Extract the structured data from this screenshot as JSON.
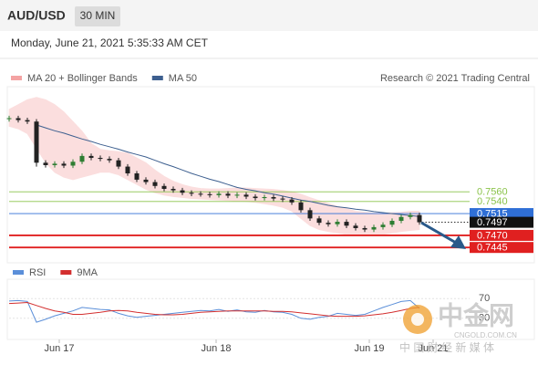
{
  "header": {
    "symbol": "AUD/USD",
    "timeframe": "30 MIN",
    "datetime": "Monday, June 21, 2021 5:35:33 AM CET"
  },
  "watermark": {
    "brand": "中金网",
    "site": "CNGOLD.COM.CN",
    "slogan": "中 国 财 经 新 媒 体"
  },
  "chart_data": [
    {
      "type": "candlestick",
      "credit": "Research © 2021 Trading Central",
      "xlim": [
        0,
        50
      ],
      "ylim": [
        0.7419,
        0.7777
      ],
      "up_color": "#2e7d32",
      "down_color": "#222222",
      "open": [
        0.771,
        0.7712,
        0.7708,
        0.7705,
        0.762,
        0.7615,
        0.7618,
        0.7614,
        0.7622,
        0.7634,
        0.763,
        0.7628,
        0.7625,
        0.7612,
        0.7598,
        0.7585,
        0.758,
        0.7572,
        0.7566,
        0.7563,
        0.7558,
        0.7556,
        0.7555,
        0.7553,
        0.7556,
        0.7552,
        0.7554,
        0.755,
        0.7547,
        0.7549,
        0.7546,
        0.7544,
        0.7538,
        0.7522,
        0.7505,
        0.7496,
        0.7493,
        0.7498,
        0.749,
        0.7485,
        0.7482,
        0.7487,
        0.7492,
        0.75,
        0.7508,
        0.7512
      ],
      "high": [
        0.7717,
        0.7717,
        0.7713,
        0.771,
        0.7625,
        0.7623,
        0.7623,
        0.7627,
        0.7639,
        0.7639,
        0.7635,
        0.7633,
        0.763,
        0.7617,
        0.7603,
        0.759,
        0.7585,
        0.7577,
        0.7571,
        0.7568,
        0.7563,
        0.7561,
        0.756,
        0.7561,
        0.7561,
        0.7559,
        0.7559,
        0.7555,
        0.7554,
        0.7554,
        0.7551,
        0.7549,
        0.7543,
        0.7527,
        0.751,
        0.7501,
        0.7503,
        0.7503,
        0.7495,
        0.749,
        0.7492,
        0.7497,
        0.7505,
        0.7513,
        0.7517,
        0.7517
      ],
      "low": [
        0.7705,
        0.7703,
        0.77,
        0.7612,
        0.761,
        0.761,
        0.7609,
        0.7609,
        0.7617,
        0.7625,
        0.7623,
        0.762,
        0.7607,
        0.7593,
        0.758,
        0.7575,
        0.7567,
        0.7561,
        0.7558,
        0.7553,
        0.7551,
        0.755,
        0.7548,
        0.7548,
        0.7547,
        0.7547,
        0.7545,
        0.7542,
        0.7542,
        0.7541,
        0.7539,
        0.7533,
        0.7517,
        0.75,
        0.7491,
        0.7488,
        0.7488,
        0.7485,
        0.748,
        0.7477,
        0.7477,
        0.7482,
        0.7487,
        0.7495,
        0.7503,
        0.7492
      ],
      "close": [
        0.7712,
        0.7708,
        0.7705,
        0.762,
        0.7615,
        0.7618,
        0.7614,
        0.7622,
        0.7634,
        0.763,
        0.7628,
        0.7625,
        0.7612,
        0.7598,
        0.7585,
        0.758,
        0.7572,
        0.7566,
        0.7563,
        0.7558,
        0.7556,
        0.7555,
        0.7553,
        0.7556,
        0.7552,
        0.7554,
        0.755,
        0.7547,
        0.7549,
        0.7546,
        0.7544,
        0.7538,
        0.7522,
        0.7505,
        0.7496,
        0.7493,
        0.7498,
        0.749,
        0.7485,
        0.7482,
        0.7487,
        0.7492,
        0.75,
        0.7508,
        0.7512,
        0.7497
      ],
      "series": [
        {
          "name": "MA 20 + Bollinger Bands",
          "color": "#f4a3a3",
          "upper": [
            0.773,
            0.774,
            0.775,
            0.7755,
            0.775,
            0.774,
            0.7725,
            0.7705,
            0.7685,
            0.766,
            0.7648,
            0.7645,
            0.7643,
            0.764,
            0.763,
            0.762,
            0.7605,
            0.7592,
            0.7582,
            0.7575,
            0.757,
            0.7567,
            0.7566,
            0.7566,
            0.7567,
            0.7568,
            0.7568,
            0.7567,
            0.7566,
            0.7565,
            0.7563,
            0.756,
            0.7555,
            0.7548,
            0.7542,
            0.7536,
            0.753,
            0.7525,
            0.752,
            0.7518,
            0.7516,
            0.7516,
            0.7517,
            0.7518,
            0.752,
            0.752
          ],
          "lower": [
            0.7695,
            0.769,
            0.768,
            0.765,
            0.762,
            0.76,
            0.759,
            0.7585,
            0.759,
            0.7595,
            0.76,
            0.76,
            0.7595,
            0.7585,
            0.7575,
            0.7565,
            0.7558,
            0.7553,
            0.755,
            0.7548,
            0.7546,
            0.7545,
            0.7544,
            0.7543,
            0.7542,
            0.7541,
            0.754,
            0.7538,
            0.7535,
            0.7532,
            0.7528,
            0.752,
            0.7505,
            0.749,
            0.7482,
            0.7478,
            0.7475,
            0.7472,
            0.747,
            0.7469,
            0.747,
            0.7472,
            0.7475,
            0.7478,
            0.748,
            0.7482
          ]
        },
        {
          "name": "MA 50",
          "color": "#3d5f8f",
          "values": [
            null,
            null,
            null,
            0.7698,
            0.7692,
            0.7686,
            0.7681,
            0.7675,
            0.7669,
            0.7664,
            0.7658,
            0.7653,
            0.7648,
            0.7642,
            0.7637,
            0.7632,
            0.7625,
            0.7618,
            0.7612,
            0.7605,
            0.7598,
            0.7592,
            0.7586,
            0.7581,
            0.7575,
            0.7569,
            0.7565,
            0.7562,
            0.7558,
            0.7555,
            0.7551,
            0.7547,
            0.7543,
            0.754,
            0.7536,
            0.7532,
            0.7529,
            0.7527,
            0.7524,
            0.7522,
            0.7519,
            0.7517,
            0.7515,
            0.7513,
            0.7511,
            0.7509
          ]
        }
      ],
      "levels": [
        {
          "value": 0.756,
          "label": "0.7560",
          "color": "#8bc34a",
          "line": "solid",
          "label_fill": false
        },
        {
          "value": 0.754,
          "label": "0.7540",
          "color": "#8bc34a",
          "line": "solid",
          "label_fill": false
        },
        {
          "value": 0.7515,
          "color": "#2f6fd6",
          "line": "solid",
          "label_fill": true
        },
        {
          "value": 0.7497,
          "color": "#111111",
          "line": "dotted",
          "label_fill": true
        },
        {
          "value": 0.747,
          "label": "0.7470",
          "color": "#e02020",
          "line": "thick",
          "label_fill": true
        },
        {
          "value": 0.7445,
          "color": "#e02020",
          "line": "thick",
          "label_fill": true
        }
      ]
    },
    {
      "type": "line",
      "xlim": [
        0,
        50
      ],
      "ylim": [
        0,
        100
      ],
      "yticks": [
        70,
        30
      ],
      "xticks": [
        {
          "value": 5.5,
          "label": "Jun 17"
        },
        {
          "value": 22.7,
          "label": "Jun 18"
        },
        {
          "value": 39.5,
          "label": "Jun 19"
        },
        {
          "value": 46.5,
          "label": "Jun 21"
        }
      ],
      "series": [
        {
          "name": "RSI",
          "color": "#5b8fd9",
          "values": [
            65,
            66,
            64,
            22,
            28,
            35,
            40,
            45,
            52,
            50,
            48,
            47,
            40,
            35,
            32,
            34,
            36,
            38,
            40,
            42,
            44,
            46,
            45,
            48,
            44,
            47,
            43,
            42,
            46,
            43,
            42,
            38,
            30,
            28,
            32,
            34,
            40,
            38,
            36,
            38,
            45,
            52,
            58,
            64,
            66,
            50
          ]
        },
        {
          "name": "9MA",
          "color": "#d32f2f",
          "values": [
            60,
            61,
            62,
            56,
            50,
            45,
            42,
            38,
            38,
            40,
            42,
            45,
            46,
            45,
            42,
            40,
            38,
            37,
            37,
            38,
            40,
            42,
            43,
            44,
            45,
            45,
            45,
            45,
            45,
            44,
            44,
            43,
            41,
            39,
            37,
            35,
            34,
            34,
            34,
            35,
            37,
            39,
            42,
            46,
            50,
            52
          ]
        }
      ]
    }
  ]
}
